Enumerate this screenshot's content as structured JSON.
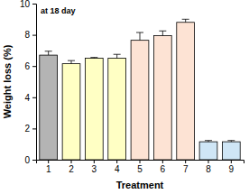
{
  "chart_data": {
    "type": "bar",
    "annotation": "at 18 day",
    "x_label": "Treatment",
    "y_label": "Weight loss (%)",
    "categories": [
      "1",
      "2",
      "3",
      "4",
      "5",
      "6",
      "7",
      "8",
      "9"
    ],
    "values": [
      6.7,
      6.15,
      6.5,
      6.5,
      7.65,
      7.95,
      8.8,
      1.15,
      1.15
    ],
    "errors": [
      0.25,
      0.2,
      0.05,
      0.25,
      0.5,
      0.3,
      0.2,
      0.08,
      0.08
    ],
    "colors": [
      "#b4b4b4",
      "#ffffc4",
      "#ffffc4",
      "#ffffc4",
      "#fde3d4",
      "#fde3d4",
      "#fde3d4",
      "#cfe6f6",
      "#cfe6f6"
    ],
    "ylim": [
      0,
      10
    ],
    "yticks": [
      0,
      2,
      4,
      6,
      8,
      10
    ]
  }
}
